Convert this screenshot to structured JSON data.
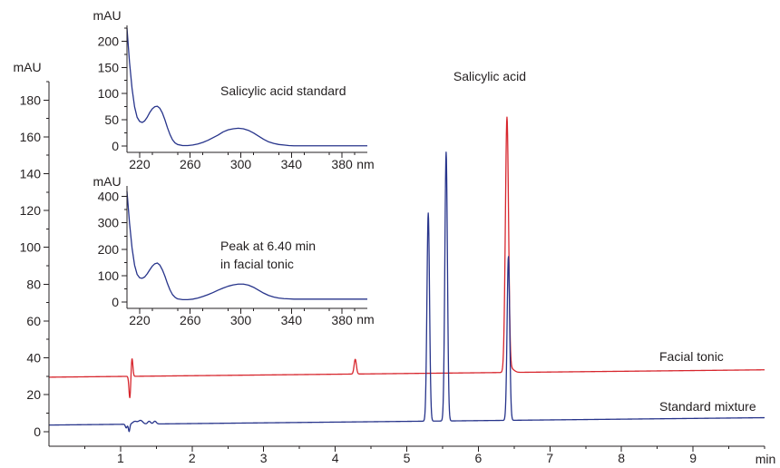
{
  "chart_data": [
    {
      "type": "line",
      "title": "",
      "xlabel": "min",
      "ylabel": "mAU",
      "xlim": [
        0,
        10
      ],
      "ylim": [
        -8,
        190
      ],
      "x_ticks": [
        1,
        2,
        3,
        4,
        5,
        6,
        7,
        8,
        9
      ],
      "x_tick_labels": [
        "1",
        "2",
        "3",
        "4",
        "5",
        "6",
        "7",
        "8",
        "9"
      ],
      "y_ticks": [
        0,
        20,
        40,
        60,
        80,
        100,
        120,
        140,
        160,
        180
      ],
      "y_tick_labels": [
        "0",
        "20",
        "40",
        "60",
        "80",
        "100",
        "120",
        "140",
        "160",
        "180"
      ],
      "grid": false,
      "series": [
        {
          "name": "Facial tonic",
          "color": "#d7262d",
          "baseline": [
            [
              0,
              29.5
            ],
            [
              10,
              33.5
            ]
          ],
          "peaks": [
            {
              "x": 1.13,
              "height": -12,
              "width": 0.012
            },
            {
              "x": 1.16,
              "height": 10,
              "width": 0.012
            },
            {
              "x": 4.28,
              "height": 8,
              "width": 0.016
            },
            {
              "x": 6.4,
              "height": 138,
              "width": 0.022
            },
            {
              "x": 6.46,
              "height": 2,
              "width": 0.04
            }
          ]
        },
        {
          "name": "Standard mixture",
          "color": "#27348b",
          "baseline": [
            [
              0,
              3.5
            ],
            [
              10,
              7.5
            ]
          ],
          "peaks": [
            {
              "x": 1.08,
              "height": -2,
              "width": 0.012
            },
            {
              "x": 1.12,
              "height": -4,
              "width": 0.01
            },
            {
              "x": 1.2,
              "height": 1.5,
              "width": 0.03
            },
            {
              "x": 1.28,
              "height": 2,
              "width": 0.03
            },
            {
              "x": 1.4,
              "height": 1.5,
              "width": 0.02
            },
            {
              "x": 1.48,
              "height": 1.5,
              "width": 0.02
            },
            {
              "x": 5.3,
              "height": 113,
              "width": 0.018
            },
            {
              "x": 5.55,
              "height": 146,
              "width": 0.018
            },
            {
              "x": 6.42,
              "height": 89,
              "width": 0.018
            }
          ]
        }
      ],
      "annotations": [
        {
          "text": "Salicylic acid",
          "x": 6.28,
          "y": 183
        },
        {
          "text": "Facial tonic",
          "x": 9.15,
          "y": 37
        },
        {
          "text": "Standard mixture",
          "x": 9.15,
          "y": 12
        }
      ]
    },
    {
      "type": "line",
      "title": "",
      "xlabel": "nm",
      "ylabel": "mAU",
      "xlim": [
        210,
        400
      ],
      "ylim": [
        -12,
        230
      ],
      "x_ticks": [
        220,
        260,
        300,
        340,
        380
      ],
      "x_tick_labels": [
        "220",
        "260",
        "300",
        "340",
        "380"
      ],
      "y_ticks": [
        0,
        50,
        100,
        150,
        200
      ],
      "y_tick_labels": [
        "0",
        "50",
        "100",
        "150",
        "200"
      ],
      "series": [
        {
          "name": "",
          "color": "#27348b",
          "x": [
            210,
            212,
            214,
            216,
            218,
            220,
            222,
            224,
            226,
            228,
            230,
            232,
            234,
            236,
            238,
            240,
            242,
            244,
            246,
            248,
            250,
            254,
            258,
            262,
            266,
            270,
            274,
            278,
            282,
            286,
            290,
            294,
            298,
            302,
            306,
            310,
            314,
            318,
            322,
            326,
            330,
            334,
            338,
            342,
            346,
            350,
            360,
            370,
            380,
            390,
            400
          ],
          "y": [
            225,
            160,
            110,
            75,
            55,
            47,
            45,
            48,
            55,
            64,
            71,
            75,
            76,
            72,
            63,
            50,
            35,
            22,
            12,
            6,
            3,
            1,
            1,
            2,
            4,
            7,
            11,
            16,
            21,
            27,
            31,
            33,
            34,
            33,
            30,
            25,
            19,
            13,
            8,
            5,
            3,
            2,
            1,
            0.5,
            0.5,
            0.5,
            0.5,
            0.5,
            0.5,
            0.5,
            0.5
          ]
        }
      ],
      "annotations": [
        {
          "text": "Salicylic acid standard",
          "x": 262,
          "y": 150
        }
      ]
    },
    {
      "type": "line",
      "title": "",
      "xlabel": "nm",
      "ylabel": "mAU",
      "xlim": [
        210,
        400
      ],
      "ylim": [
        -24,
        440
      ],
      "x_ticks": [
        220,
        260,
        300,
        340,
        380
      ],
      "x_tick_labels": [
        "220",
        "260",
        "300",
        "340",
        "380"
      ],
      "y_ticks": [
        0,
        100,
        200,
        300,
        400
      ],
      "y_tick_labels": [
        "0",
        "100",
        "200",
        "300",
        "400"
      ],
      "series": [
        {
          "name": "",
          "color": "#27348b",
          "x": [
            210,
            212,
            214,
            216,
            218,
            220,
            222,
            224,
            226,
            228,
            230,
            232,
            234,
            236,
            238,
            240,
            242,
            244,
            246,
            248,
            250,
            254,
            258,
            262,
            266,
            270,
            274,
            278,
            282,
            286,
            290,
            294,
            298,
            302,
            306,
            310,
            314,
            318,
            322,
            326,
            330,
            334,
            338,
            342,
            346,
            350,
            360,
            370,
            380,
            390,
            400
          ],
          "y": [
            420,
            300,
            205,
            140,
            105,
            92,
            90,
            95,
            107,
            122,
            136,
            145,
            148,
            140,
            122,
            98,
            70,
            46,
            28,
            18,
            12,
            9,
            9,
            11,
            15,
            21,
            28,
            36,
            45,
            53,
            60,
            65,
            68,
            68,
            64,
            56,
            45,
            34,
            25,
            19,
            15,
            13,
            12,
            11,
            11,
            11,
            11,
            11,
            11,
            11,
            11
          ]
        }
      ],
      "annotations": [
        {
          "text": "Peak at 6.40 min",
          "x": 262,
          "y": 295
        },
        {
          "text": "in facial tonic",
          "x": 262,
          "y": 205
        }
      ]
    }
  ]
}
